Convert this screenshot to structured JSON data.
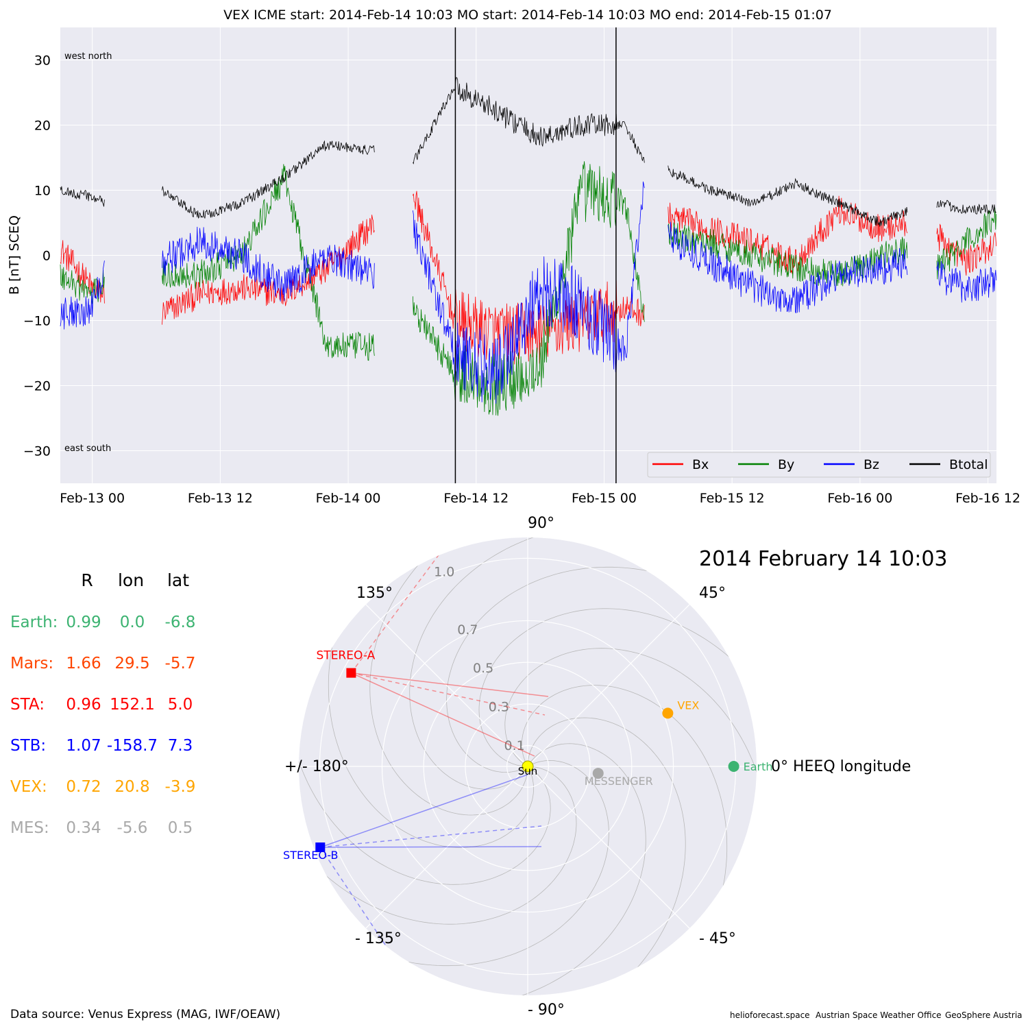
{
  "title": "VEX    ICME start: 2014-Feb-14 10:03   MO start: 2014-Feb-14 10:03   MO end: 2014-Feb-15 01:07",
  "colors": {
    "Bx": "#ff0000",
    "By": "#008000",
    "Bz": "#0000ff",
    "Btotal": "#000000",
    "earth": "#3cb371",
    "mars": "#ff4500",
    "sta": "#ff0000",
    "stb": "#0000ff",
    "vex": "#ffa500",
    "mes": "#a9a9a9",
    "sun": "#ffff00",
    "panel_bg": "#eaeaf2"
  },
  "chart_data": [
    {
      "type": "line",
      "ylabel": "B [nT] SCEQ",
      "xlabel": "",
      "ylim": [
        -35,
        35
      ],
      "yticks": [
        30,
        20,
        10,
        0,
        -10,
        -20,
        -30
      ],
      "ytick_labels": [
        "30",
        "20",
        "10",
        "0",
        "−10",
        "−20",
        "−30"
      ],
      "xlim_hours": [
        -3,
        84.8
      ],
      "xticks_hours": [
        0,
        12,
        24,
        36,
        48,
        60,
        72,
        84
      ],
      "xtick_labels": [
        "Feb-13 00",
        "Feb-13 12",
        "Feb-14 00",
        "Feb-14 12",
        "Feb-15 00",
        "Feb-15 12",
        "Feb-16 00",
        "Feb-16 12"
      ],
      "x_units": "hours after 2014-Feb-13 00:00",
      "grid": true,
      "legend": {
        "position": "lower-right",
        "entries": [
          "Bx",
          "By",
          "Bz",
          "Btotal"
        ]
      },
      "annotations": {
        "top_left": "west    north",
        "bottom_left": "east    south"
      },
      "vlines_hours": [
        34.05,
        49.12
      ],
      "data_gaps_hours": [
        [
          1.2,
          6.5
        ],
        [
          26.5,
          30.0
        ],
        [
          51.8,
          54.0
        ],
        [
          76.5,
          79.2
        ]
      ],
      "series": [
        {
          "name": "Bx",
          "x": [
            -3,
            0,
            1.2,
            6.5,
            10,
            14,
            18,
            22,
            26.5,
            30,
            34,
            38,
            42,
            46,
            50,
            51.8,
            54,
            58,
            62,
            66,
            70,
            74,
            76.5,
            79.2,
            82,
            84.8
          ],
          "y": [
            1,
            -5,
            -6,
            -9,
            -6,
            -5,
            -6,
            -2,
            5,
            10,
            -10,
            -12,
            -12,
            -10,
            -8,
            -9,
            6,
            4,
            2,
            -1,
            7,
            4,
            5,
            3,
            -1,
            2
          ]
        },
        {
          "name": "By",
          "x": [
            -3,
            0,
            1.2,
            6.5,
            10,
            14,
            18,
            22,
            26.5,
            30,
            34,
            38,
            42,
            46,
            50,
            51.8,
            54,
            58,
            62,
            66,
            70,
            74,
            76.5,
            79.2,
            82,
            84.8
          ],
          "y": [
            -3,
            -6,
            -4,
            -3,
            -3,
            0,
            12,
            -14,
            -14,
            -8,
            -18,
            -20,
            -17,
            10,
            8,
            -10,
            3,
            2,
            0,
            -2,
            -3,
            0,
            1,
            -2,
            2,
            6
          ]
        },
        {
          "name": "Bz",
          "x": [
            -3,
            0,
            1.2,
            6.5,
            10,
            14,
            18,
            22,
            26.5,
            30,
            34,
            38,
            42,
            46,
            50,
            51.8,
            54,
            58,
            62,
            66,
            70,
            74,
            76.5,
            79.2,
            82,
            84.8
          ],
          "y": [
            -9,
            -8,
            -1,
            -1,
            2,
            0,
            -5,
            0,
            -3,
            5,
            -15,
            -18,
            -5,
            -8,
            -15,
            12,
            3,
            -1,
            -5,
            -7,
            -3,
            -2,
            -1,
            -3,
            -5,
            -4
          ]
        },
        {
          "name": "Btotal",
          "x": [
            -3,
            0,
            1.2,
            6.5,
            10,
            14,
            18,
            22,
            26.5,
            30,
            34,
            38,
            42,
            46,
            50,
            51.8,
            54,
            58,
            62,
            66,
            70,
            74,
            76.5,
            79.2,
            82,
            84.8
          ],
          "y": [
            10,
            9,
            8,
            10,
            6,
            8,
            12,
            17,
            16,
            14,
            26,
            22,
            18,
            20,
            20,
            14,
            13,
            10,
            8,
            11,
            8,
            5,
            7,
            8,
            7,
            7
          ]
        }
      ]
    },
    {
      "type": "scatter",
      "subtype": "polar",
      "title": "2014 February 14  10:03",
      "rlim": [
        0,
        1.1
      ],
      "rticks": [
        0.1,
        0.3,
        0.5,
        0.7,
        1.0
      ],
      "rtick_labels": [
        "0.1",
        "0.3",
        "0.5",
        "0.7",
        "1.0"
      ],
      "theta_labels": [
        "0° HEEQ longitude",
        "45°",
        "90°",
        "135°",
        "+/- 180°",
        "- 135°",
        "- 90°",
        "- 45°"
      ],
      "theta_label_angles_deg": [
        0,
        45,
        90,
        135,
        180,
        -135,
        -90,
        -45
      ],
      "grid": true,
      "points": [
        {
          "label": "Sun",
          "r": 0.0,
          "lon": 0.0,
          "marker": "circle",
          "color_key": "sun"
        },
        {
          "label": "MESSENGER",
          "r": 0.34,
          "lon": -5.6,
          "marker": "circle",
          "color_key": "mes"
        },
        {
          "label": "VEX",
          "r": 0.72,
          "lon": 20.8,
          "marker": "circle",
          "color_key": "vex"
        },
        {
          "label": "Earth",
          "r": 0.99,
          "lon": 0.0,
          "marker": "circle",
          "color_key": "earth"
        },
        {
          "label": "STEREO-A",
          "r": 0.96,
          "lon": 152.1,
          "marker": "square",
          "color_key": "sta"
        },
        {
          "label": "STEREO-B",
          "r": 1.07,
          "lon": -158.7,
          "marker": "square",
          "color_key": "stb"
        }
      ]
    }
  ],
  "table": {
    "headers": [
      "R",
      "lon",
      "lat"
    ],
    "rows": [
      {
        "name": "Earth:",
        "R": "0.99",
        "lon": "0.0",
        "lat": "-6.8",
        "color_key": "earth"
      },
      {
        "name": "Mars:",
        "R": "1.66",
        "lon": "29.5",
        "lat": "-5.7",
        "color_key": "mars"
      },
      {
        "name": "STA:",
        "R": "0.96",
        "lon": "152.1",
        "lat": "5.0",
        "color_key": "sta"
      },
      {
        "name": "STB:",
        "R": "1.07",
        "lon": "-158.7",
        "lat": "7.3",
        "color_key": "stb"
      },
      {
        "name": "VEX:",
        "R": "0.72",
        "lon": "20.8",
        "lat": "-3.9",
        "color_key": "vex"
      },
      {
        "name": "MES:",
        "R": "0.34",
        "lon": "-5.6",
        "lat": "0.5",
        "color_key": "mes"
      }
    ]
  },
  "footer": {
    "source": "Data source: Venus Express (MAG, IWF/OEAW)",
    "credits": [
      "helioforecast.space",
      "Austrian Space Weather Office",
      "GeoSphere Austria"
    ]
  }
}
